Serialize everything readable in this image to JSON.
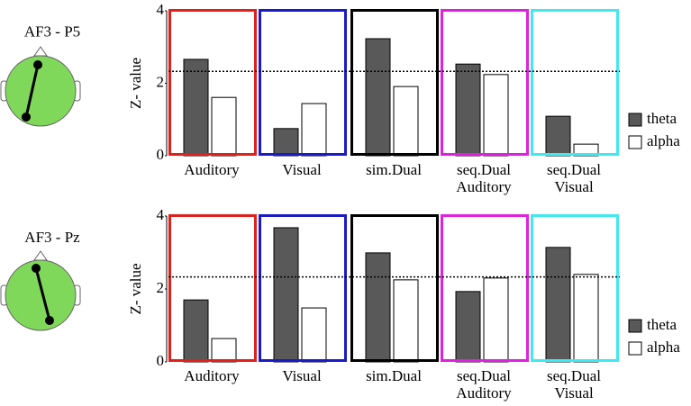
{
  "chart_data": [
    {
      "type": "bar",
      "title": "AF3 - P5",
      "y_label": "Z- value",
      "categories": [
        "Auditory",
        "Visual",
        "sim.Dual",
        "seq.Dual Auditory",
        "seq.Dual Visual"
      ],
      "category_colors": [
        "#e0201b",
        "#1a1ac8",
        "#000000",
        "#e020e0",
        "#40e8f0"
      ],
      "series": [
        {
          "name": "theta",
          "color": "#595959",
          "values": [
            2.66,
            0.75,
            3.23,
            2.53,
            1.09
          ]
        },
        {
          "name": "alpha",
          "color": "#ffffff",
          "values": [
            1.61,
            1.44,
            1.91,
            2.24,
            0.32
          ]
        }
      ],
      "ylim": [
        0,
        4
      ],
      "yticks": [
        0,
        2,
        4
      ],
      "threshold": 2.33
    },
    {
      "type": "bar",
      "title": "AF3 - Pz",
      "y_label": "Z- value",
      "categories": [
        "Auditory",
        "Visual",
        "sim.Dual",
        "seq.Dual Auditory",
        "seq.Dual Visual"
      ],
      "category_colors": [
        "#e0201b",
        "#1a1ac8",
        "#000000",
        "#e020e0",
        "#40e8f0"
      ],
      "series": [
        {
          "name": "theta",
          "color": "#595959",
          "values": [
            1.7,
            3.68,
            2.99,
            1.93,
            3.14
          ]
        },
        {
          "name": "alpha",
          "color": "#ffffff",
          "values": [
            0.64,
            1.48,
            2.25,
            2.3,
            2.4
          ]
        }
      ],
      "ylim": [
        0,
        4
      ],
      "yticks": [
        0,
        2,
        4
      ],
      "threshold": 2.33
    }
  ]
}
